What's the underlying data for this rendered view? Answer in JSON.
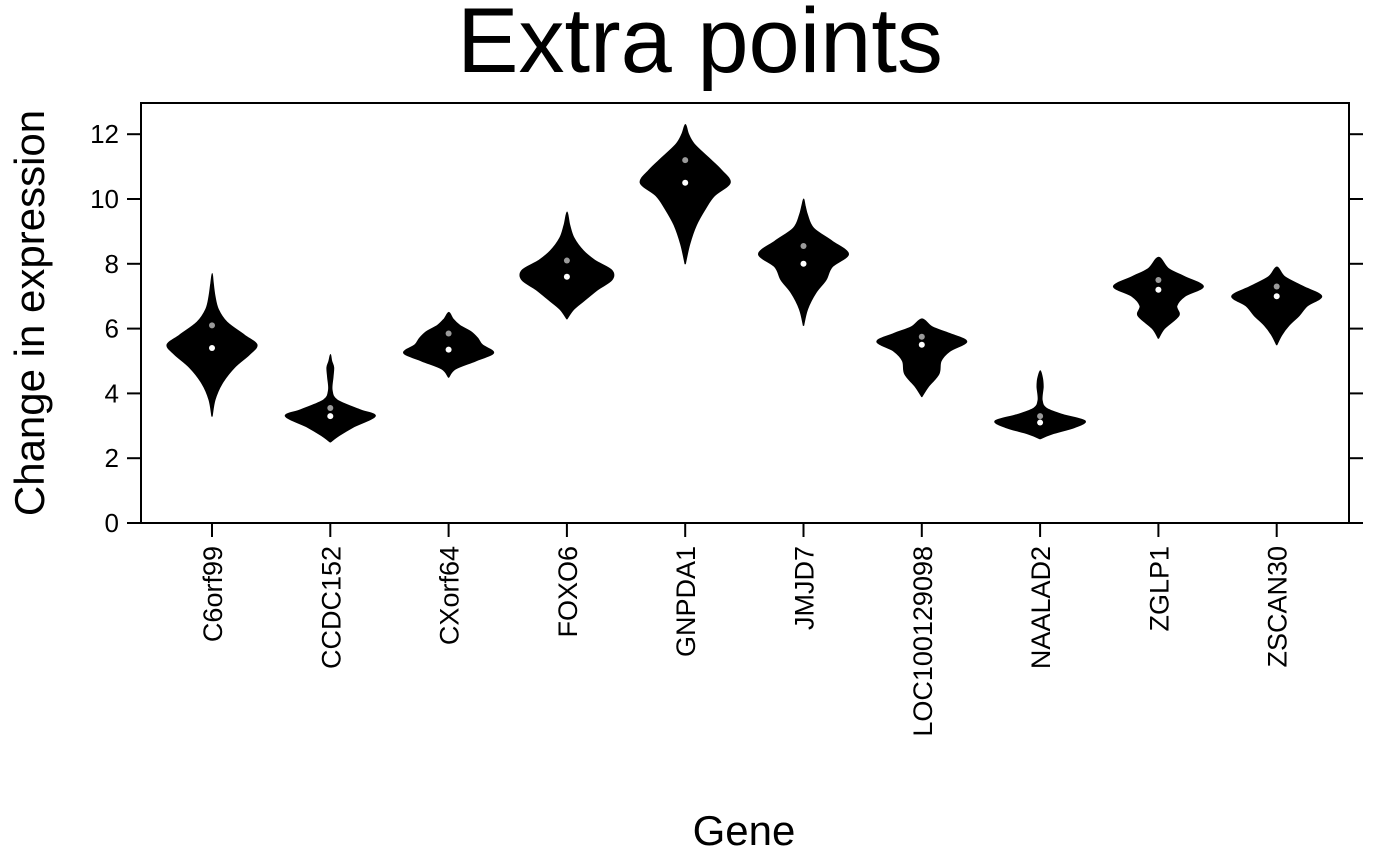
{
  "chart_data": {
    "type": "violin",
    "title": "Extra points",
    "xlabel": "Gene",
    "ylabel": "Change in expression",
    "ylim": [
      0,
      13
    ],
    "yticks": [
      0,
      2,
      4,
      6,
      8,
      10,
      12
    ],
    "grid": false,
    "legend": "none",
    "colors": {
      "violin": "#000000",
      "primary_point": "#ffffff",
      "extra_point": "#9a9a9a",
      "axis": "#000000"
    },
    "categories": [
      "C6orf99",
      "CCDC152",
      "CXorf64",
      "FOXO6",
      "GNPDA1",
      "JMJD7",
      "LOC100129098",
      "NAALAD2",
      "ZGLP1",
      "ZSCAN30"
    ],
    "violins": [
      {
        "gene": "C6orf99",
        "min": 3.3,
        "max": 7.7,
        "profile": [
          [
            3.3,
            0.2
          ],
          [
            3.8,
            1.2
          ],
          [
            4.3,
            4
          ],
          [
            4.8,
            9
          ],
          [
            5.2,
            15
          ],
          [
            5.5,
            18
          ],
          [
            5.8,
            13
          ],
          [
            6.2,
            6
          ],
          [
            6.6,
            2.5
          ],
          [
            7.0,
            1.2
          ],
          [
            7.4,
            0.5
          ],
          [
            7.7,
            0.2
          ]
        ],
        "point": 5.4,
        "extra_point": 6.1
      },
      {
        "gene": "CCDC152",
        "min": 2.5,
        "max": 5.2,
        "profile": [
          [
            2.5,
            0.2
          ],
          [
            2.7,
            4
          ],
          [
            2.95,
            10
          ],
          [
            3.3,
            20
          ],
          [
            3.5,
            13
          ],
          [
            3.8,
            3
          ],
          [
            4.1,
            0.8
          ],
          [
            4.5,
            1.2
          ],
          [
            4.8,
            1.5
          ],
          [
            5.0,
            0.6
          ],
          [
            5.2,
            0.2
          ]
        ],
        "point": 3.3,
        "extra_point": 3.55
      },
      {
        "gene": "CXorf64",
        "min": 4.5,
        "max": 6.5,
        "profile": [
          [
            4.5,
            0.2
          ],
          [
            4.75,
            3
          ],
          [
            5.0,
            12
          ],
          [
            5.25,
            20
          ],
          [
            5.5,
            15
          ],
          [
            5.7,
            13
          ],
          [
            5.9,
            10
          ],
          [
            6.1,
            5
          ],
          [
            6.3,
            2
          ],
          [
            6.5,
            0.2
          ]
        ],
        "point": 5.35,
        "extra_point": 5.85
      },
      {
        "gene": "FOXO6",
        "min": 6.3,
        "max": 9.6,
        "profile": [
          [
            6.3,
            0.2
          ],
          [
            6.6,
            3
          ],
          [
            6.9,
            8
          ],
          [
            7.2,
            13
          ],
          [
            7.5,
            19
          ],
          [
            7.8,
            19
          ],
          [
            8.1,
            12
          ],
          [
            8.4,
            7
          ],
          [
            8.8,
            3
          ],
          [
            9.2,
            1.2
          ],
          [
            9.6,
            0.2
          ]
        ],
        "point": 7.6,
        "extra_point": 8.1
      },
      {
        "gene": "GNPDA1",
        "min": 8.0,
        "max": 12.3,
        "profile": [
          [
            8.0,
            0.2
          ],
          [
            8.6,
            2
          ],
          [
            9.2,
            5
          ],
          [
            9.7,
            9
          ],
          [
            10.1,
            13
          ],
          [
            10.5,
            20
          ],
          [
            10.9,
            16
          ],
          [
            11.3,
            10
          ],
          [
            11.7,
            4
          ],
          [
            12.0,
            1.5
          ],
          [
            12.3,
            0.2
          ]
        ],
        "point": 10.5,
        "extra_point": 11.2
      },
      {
        "gene": "JMJD7",
        "min": 6.1,
        "max": 10.0,
        "profile": [
          [
            6.1,
            0.2
          ],
          [
            6.6,
            2
          ],
          [
            7.1,
            6
          ],
          [
            7.5,
            11
          ],
          [
            7.9,
            14
          ],
          [
            8.3,
            22
          ],
          [
            8.7,
            14
          ],
          [
            9.1,
            5
          ],
          [
            9.5,
            2
          ],
          [
            9.8,
            0.8
          ],
          [
            10.0,
            0.2
          ]
        ],
        "point": 8.0,
        "extra_point": 8.55
      },
      {
        "gene": "LOC100129098",
        "min": 3.9,
        "max": 6.3,
        "profile": [
          [
            3.9,
            0.2
          ],
          [
            4.2,
            3
          ],
          [
            4.6,
            8
          ],
          [
            5.0,
            9
          ],
          [
            5.3,
            13
          ],
          [
            5.6,
            21
          ],
          [
            5.85,
            13
          ],
          [
            6.05,
            5
          ],
          [
            6.3,
            0.2
          ]
        ],
        "point": 5.5,
        "extra_point": 5.75
      },
      {
        "gene": "NAALAD2",
        "min": 2.6,
        "max": 4.7,
        "profile": [
          [
            2.6,
            0.2
          ],
          [
            2.75,
            6
          ],
          [
            2.95,
            17
          ],
          [
            3.15,
            22
          ],
          [
            3.35,
            11
          ],
          [
            3.55,
            3
          ],
          [
            3.8,
            1
          ],
          [
            4.2,
            1.5
          ],
          [
            4.45,
            1.2
          ],
          [
            4.7,
            0.2
          ]
        ],
        "point": 3.1,
        "extra_point": 3.3
      },
      {
        "gene": "ZGLP1",
        "min": 5.7,
        "max": 8.2,
        "profile": [
          [
            5.7,
            0.2
          ],
          [
            6.0,
            3
          ],
          [
            6.4,
            10
          ],
          [
            6.7,
            9
          ],
          [
            7.0,
            13
          ],
          [
            7.3,
            22
          ],
          [
            7.6,
            13
          ],
          [
            7.85,
            5
          ],
          [
            8.2,
            0.2
          ]
        ],
        "point": 7.2,
        "extra_point": 7.5
      },
      {
        "gene": "ZSCAN30",
        "min": 5.5,
        "max": 7.9,
        "profile": [
          [
            5.5,
            0.2
          ],
          [
            5.8,
            2.5
          ],
          [
            6.1,
            6
          ],
          [
            6.4,
            11
          ],
          [
            6.7,
            15
          ],
          [
            7.0,
            22
          ],
          [
            7.3,
            13
          ],
          [
            7.6,
            4
          ],
          [
            7.9,
            0.2
          ]
        ],
        "point": 7.0,
        "extra_point": 7.3
      }
    ]
  }
}
